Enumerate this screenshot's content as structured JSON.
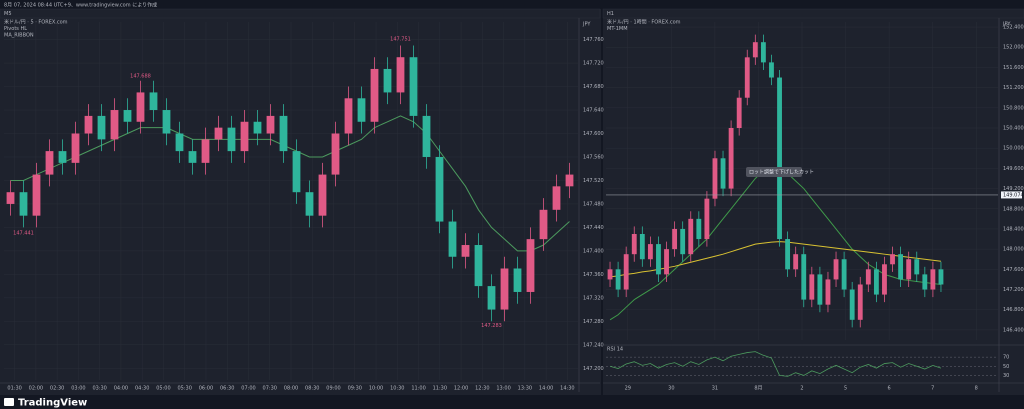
{
  "header": {
    "text": "8月 07, 2024 08:44 UTC+9、www.tradingview.com により作成"
  },
  "footer": {
    "brand": "TradingView"
  },
  "charts": [
    {
      "toolbar": "M5",
      "currency": "JPY",
      "legend": [
        "米ドル/円 · 5 · FOREX.com",
        "Pivots HL",
        "MA_RIBBON"
      ],
      "up_color": "#e05a86",
      "down_color": "#2fb59c",
      "ma_color": "#4c9a5e",
      "ylim": [
        147.18,
        147.79
      ],
      "yticks": [
        {
          "value": 147.2,
          "label": "147.200"
        },
        {
          "value": 147.24,
          "label": "147.240"
        },
        {
          "value": 147.28,
          "label": "147.280"
        },
        {
          "value": 147.32,
          "label": "147.320"
        },
        {
          "value": 147.36,
          "label": "147.360"
        },
        {
          "value": 147.4,
          "label": "147.400"
        },
        {
          "value": 147.44,
          "label": "147.440"
        },
        {
          "value": 147.48,
          "label": "147.480"
        },
        {
          "value": 147.52,
          "label": "147.520"
        },
        {
          "value": 147.56,
          "label": "147.560"
        },
        {
          "value": 147.6,
          "label": "147.600"
        },
        {
          "value": 147.64,
          "label": "147.640"
        },
        {
          "value": 147.68,
          "label": "147.680"
        },
        {
          "value": 147.72,
          "label": "147.720"
        },
        {
          "value": 147.76,
          "label": "147.760"
        }
      ],
      "times": [
        "01:30",
        "02:00",
        "02:30",
        "03:00",
        "03:30",
        "04:00",
        "04:30",
        "05:00",
        "05:30",
        "06:00",
        "06:30",
        "07:00",
        "07:30",
        "08:00",
        "08:30",
        "09:00",
        "09:30",
        "10:00",
        "10:30",
        "11:00",
        "11:30",
        "12:00",
        "12:30",
        "13:00",
        "13:30",
        "14:00",
        "14:30"
      ],
      "ohlc": [
        [
          147.48,
          147.52,
          147.46,
          147.5
        ],
        [
          147.5,
          147.52,
          147.44,
          147.46
        ],
        [
          147.46,
          147.55,
          147.44,
          147.53
        ],
        [
          147.53,
          147.59,
          147.51,
          147.57
        ],
        [
          147.57,
          147.59,
          147.53,
          147.55
        ],
        [
          147.55,
          147.62,
          147.53,
          147.6
        ],
        [
          147.6,
          147.65,
          147.58,
          147.63
        ],
        [
          147.63,
          147.65,
          147.57,
          147.59
        ],
        [
          147.59,
          147.66,
          147.57,
          147.64
        ],
        [
          147.64,
          147.66,
          147.6,
          147.62
        ],
        [
          147.62,
          147.69,
          147.6,
          147.67
        ],
        [
          147.67,
          147.69,
          147.62,
          147.64
        ],
        [
          147.64,
          147.66,
          147.58,
          147.6
        ],
        [
          147.6,
          147.62,
          147.55,
          147.57
        ],
        [
          147.57,
          147.59,
          147.53,
          147.55
        ],
        [
          147.55,
          147.61,
          147.53,
          147.59
        ],
        [
          147.59,
          147.63,
          147.57,
          147.61
        ],
        [
          147.61,
          147.63,
          147.55,
          147.57
        ],
        [
          147.57,
          147.64,
          147.55,
          147.62
        ],
        [
          147.62,
          147.64,
          147.58,
          147.6
        ],
        [
          147.6,
          147.65,
          147.58,
          147.63
        ],
        [
          147.63,
          147.65,
          147.55,
          147.57
        ],
        [
          147.57,
          147.59,
          147.48,
          147.5
        ],
        [
          147.5,
          147.52,
          147.44,
          147.46
        ],
        [
          147.46,
          147.55,
          147.44,
          147.53
        ],
        [
          147.53,
          147.62,
          147.51,
          147.6
        ],
        [
          147.6,
          147.68,
          147.58,
          147.66
        ],
        [
          147.66,
          147.68,
          147.6,
          147.62
        ],
        [
          147.62,
          147.73,
          147.6,
          147.71
        ],
        [
          147.71,
          147.73,
          147.65,
          147.67
        ],
        [
          147.67,
          147.75,
          147.65,
          147.73
        ],
        [
          147.73,
          147.75,
          147.61,
          147.63
        ],
        [
          147.63,
          147.65,
          147.54,
          147.56
        ],
        [
          147.56,
          147.58,
          147.43,
          147.45
        ],
        [
          147.45,
          147.47,
          147.37,
          147.39
        ],
        [
          147.39,
          147.43,
          147.37,
          147.41
        ],
        [
          147.41,
          147.43,
          147.32,
          147.34
        ],
        [
          147.34,
          147.36,
          147.28,
          147.3
        ],
        [
          147.3,
          147.39,
          147.28,
          147.37
        ],
        [
          147.37,
          147.39,
          147.31,
          147.33
        ],
        [
          147.33,
          147.44,
          147.31,
          147.42
        ],
        [
          147.42,
          147.49,
          147.4,
          147.47
        ],
        [
          147.47,
          147.53,
          147.45,
          147.51
        ],
        [
          147.51,
          147.55,
          147.49,
          147.53
        ]
      ],
      "ma": [
        147.52,
        147.52,
        147.53,
        147.54,
        147.55,
        147.56,
        147.57,
        147.58,
        147.59,
        147.6,
        147.61,
        147.61,
        147.61,
        147.6,
        147.59,
        147.59,
        147.59,
        147.59,
        147.59,
        147.59,
        147.59,
        147.58,
        147.57,
        147.56,
        147.56,
        147.57,
        147.58,
        147.59,
        147.61,
        147.62,
        147.63,
        147.62,
        147.6,
        147.57,
        147.54,
        147.51,
        147.47,
        147.44,
        147.42,
        147.4,
        147.4,
        147.41,
        147.43,
        147.45
      ],
      "pivots": [
        147.751,
        147.688,
        147.441,
        147.283
      ]
    },
    {
      "toolbar": "H1",
      "currency": "JPY",
      "legend": [
        "米ドル/円 · 1時間 · FOREX.com",
        "MT-1MM"
      ],
      "up_color": "#e05a86",
      "down_color": "#2fb59c",
      "ma_color": "#3f9a4a",
      "ma2_color": "#d9c232",
      "ylim": [
        146.2,
        152.5
      ],
      "yticks": [
        {
          "value": 146.4,
          "label": "146.400"
        },
        {
          "value": 146.8,
          "label": "146.800"
        },
        {
          "value": 147.2,
          "label": "147.200"
        },
        {
          "value": 147.6,
          "label": "147.600"
        },
        {
          "value": 148,
          "label": "148.000"
        },
        {
          "value": 148.4,
          "label": "148.400"
        },
        {
          "value": 148.8,
          "label": "148.800"
        },
        {
          "value": 149.2,
          "label": "149.200"
        },
        {
          "value": 149.6,
          "label": "149.600"
        },
        {
          "value": 150,
          "label": "150.000"
        },
        {
          "value": 150.4,
          "label": "150.400"
        },
        {
          "value": 150.8,
          "label": "150.800"
        },
        {
          "value": 151.2,
          "label": "151.200"
        },
        {
          "value": 151.6,
          "label": "151.600"
        },
        {
          "value": 152,
          "label": "152.000"
        },
        {
          "value": 152.4,
          "label": "152.400"
        }
      ],
      "times": [
        "29",
        "30",
        "31",
        "8月",
        "2",
        "5",
        "6",
        "7",
        "8"
      ],
      "ohlc": [
        [
          147.4,
          147.75,
          147.25,
          147.6
        ],
        [
          147.6,
          147.75,
          147.05,
          147.2
        ],
        [
          147.2,
          148.05,
          147.05,
          147.9
        ],
        [
          147.9,
          148.45,
          147.75,
          148.3
        ],
        [
          148.3,
          148.45,
          147.65,
          147.8
        ],
        [
          147.8,
          148.25,
          147.65,
          148.1
        ],
        [
          148.1,
          148.25,
          147.35,
          147.5
        ],
        [
          147.5,
          148.15,
          147.35,
          148
        ],
        [
          148,
          148.55,
          147.85,
          148.4
        ],
        [
          148.4,
          148.55,
          147.75,
          147.9
        ],
        [
          147.9,
          148.75,
          147.75,
          148.6
        ],
        [
          148.6,
          148.75,
          148.05,
          148.2
        ],
        [
          148.2,
          149.15,
          148.05,
          149
        ],
        [
          149,
          149.95,
          148.85,
          149.8
        ],
        [
          149.8,
          149.95,
          149.05,
          149.2
        ],
        [
          149.2,
          150.55,
          149.05,
          150.4
        ],
        [
          150.4,
          151.15,
          150.25,
          151
        ],
        [
          151,
          151.95,
          150.85,
          151.8
        ],
        [
          151.8,
          152.25,
          151.65,
          152.1
        ],
        [
          152.1,
          152.25,
          151.55,
          151.7
        ],
        [
          151.7,
          151.85,
          151.25,
          151.4
        ],
        [
          151.4,
          151.55,
          148.05,
          148.2
        ],
        [
          148.2,
          148.35,
          147.45,
          147.6
        ],
        [
          147.6,
          148.05,
          147.45,
          147.9
        ],
        [
          147.9,
          148.05,
          146.85,
          147
        ],
        [
          147,
          147.65,
          146.85,
          147.5
        ],
        [
          147.5,
          147.65,
          146.75,
          146.9
        ],
        [
          146.9,
          147.55,
          146.75,
          147.4
        ],
        [
          147.4,
          147.95,
          147.25,
          147.8
        ],
        [
          147.8,
          147.95,
          147.05,
          147.2
        ],
        [
          147.2,
          147.35,
          146.45,
          146.6
        ],
        [
          146.6,
          147.45,
          146.45,
          147.3
        ],
        [
          147.3,
          147.75,
          147.15,
          147.6
        ],
        [
          147.6,
          147.75,
          146.95,
          147.1
        ],
        [
          147.1,
          147.85,
          146.95,
          147.7
        ],
        [
          147.7,
          148.05,
          147.55,
          147.9
        ],
        [
          147.9,
          148.05,
          147.25,
          147.4
        ],
        [
          147.4,
          147.95,
          147.25,
          147.8
        ],
        [
          147.8,
          147.95,
          147.35,
          147.5
        ],
        [
          147.5,
          147.65,
          147.05,
          147.2
        ],
        [
          147.2,
          147.75,
          147.05,
          147.6
        ],
        [
          147.6,
          147.75,
          147.15,
          147.3
        ]
      ],
      "ma": [
        146.6,
        146.7,
        146.85,
        147,
        147.1,
        147.2,
        147.3,
        147.45,
        147.6,
        147.75,
        147.9,
        148.05,
        148.2,
        148.4,
        148.6,
        148.8,
        149,
        149.2,
        149.4,
        149.55,
        149.6,
        149.6,
        149.5,
        149.35,
        149.2,
        149,
        148.8,
        148.6,
        148.4,
        148.2,
        148,
        147.85,
        147.7,
        147.6,
        147.5,
        147.45,
        147.4,
        147.38,
        147.36,
        147.34,
        147.32,
        147.3
      ],
      "ma2": [
        147.45,
        147.47,
        147.5,
        147.52,
        147.55,
        147.57,
        147.6,
        147.63,
        147.66,
        147.7,
        147.74,
        147.78,
        147.82,
        147.86,
        147.9,
        147.95,
        148,
        148.05,
        148.1,
        148.12,
        148.14,
        148.15,
        148.14,
        148.12,
        148.1,
        148.08,
        148.06,
        148.04,
        148.02,
        148,
        147.98,
        147.96,
        147.94,
        147.92,
        147.9,
        147.88,
        147.86,
        147.84,
        147.82,
        147.8,
        147.78,
        147.76
      ],
      "hlines": [
        149.074
      ],
      "note": "ロット調整で下げしたカット",
      "rsi": {
        "label": "RSI 14",
        "color": "#4c9a5e",
        "ylim": [
          20,
          90
        ],
        "yticks": [
          30,
          50,
          70
        ],
        "values": [
          50,
          45,
          55,
          60,
          52,
          56,
          46,
          54,
          58,
          50,
          60,
          54,
          64,
          70,
          62,
          72,
          76,
          80,
          82,
          74,
          68,
          30,
          28,
          36,
          30,
          40,
          34,
          44,
          52,
          44,
          36,
          48,
          54,
          46,
          56,
          58,
          48,
          56,
          50,
          44,
          52,
          46
        ]
      }
    }
  ]
}
